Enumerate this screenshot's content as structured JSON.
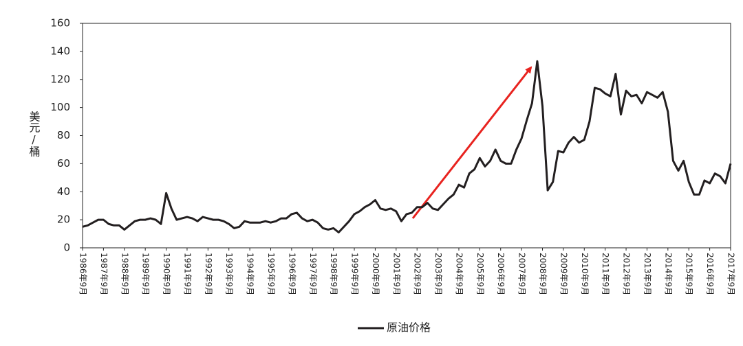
{
  "chart_data": {
    "type": "line",
    "y_label": "美元/桶",
    "categories": [
      "1986年9月",
      null,
      null,
      null,
      "1987年9月",
      null,
      null,
      null,
      "1988年9月",
      null,
      null,
      null,
      "1989年9月",
      null,
      null,
      null,
      "1990年9月",
      null,
      null,
      null,
      "1991年9月",
      null,
      null,
      null,
      "1992年9月",
      null,
      null,
      null,
      "1993年9月",
      null,
      null,
      null,
      "1994年9月",
      null,
      null,
      null,
      "1995年9月",
      null,
      null,
      null,
      "1996年9月",
      null,
      null,
      null,
      "1997年9月",
      null,
      null,
      null,
      "1998年9月",
      null,
      null,
      null,
      "1999年9月",
      null,
      null,
      null,
      "2000年9月",
      null,
      null,
      null,
      "2001年9月",
      null,
      null,
      null,
      "2002年9月",
      null,
      null,
      null,
      "2003年9月",
      null,
      null,
      null,
      "2004年9月",
      null,
      null,
      null,
      "2005年9月",
      null,
      null,
      null,
      "2006年9月",
      null,
      null,
      null,
      "2007年9月",
      null,
      null,
      null,
      "2008年9月",
      null,
      null,
      null,
      "2009年9月",
      null,
      null,
      null,
      "2010年9月",
      null,
      null,
      null,
      "2011年9月",
      null,
      null,
      null,
      "2012年9月",
      null,
      null,
      null,
      "2013年9月",
      null,
      null,
      null,
      "2014年9月",
      null,
      null,
      null,
      "2015年9月",
      null,
      null,
      null,
      "2016年9月",
      null,
      null,
      null,
      "2017年9月"
    ],
    "series": [
      {
        "name": "原油价格",
        "color": "#231f20",
        "values": [
          15,
          16,
          18,
          20,
          20,
          17,
          16,
          16,
          13,
          16,
          19,
          20,
          20,
          21,
          20,
          17,
          39,
          28,
          20,
          21,
          22,
          21,
          19,
          22,
          21,
          20,
          20,
          19,
          17,
          14,
          15,
          19,
          18,
          18,
          18,
          19,
          18,
          19,
          21,
          21,
          24,
          25,
          21,
          19,
          20,
          18,
          14,
          13,
          14,
          11,
          15,
          19,
          24,
          26,
          29,
          31,
          34,
          28,
          27,
          28,
          26,
          19,
          24,
          25,
          29,
          29,
          32,
          28,
          27,
          31,
          35,
          38,
          45,
          43,
          53,
          56,
          64,
          58,
          62,
          70,
          62,
          60,
          60,
          70,
          78,
          91,
          103,
          133,
          101,
          41,
          47,
          69,
          68,
          75,
          79,
          75,
          77,
          90,
          114,
          113,
          110,
          108,
          124,
          95,
          112,
          108,
          109,
          103,
          111,
          109,
          107,
          111,
          97,
          62,
          55,
          62,
          47,
          38,
          38,
          48,
          46,
          53,
          51,
          46,
          60
        ]
      }
    ],
    "ylim": [
      0,
      160
    ],
    "yticks": [
      0,
      20,
      40,
      60,
      80,
      100,
      120,
      140,
      160
    ],
    "grid": false,
    "legend": "bottom"
  }
}
